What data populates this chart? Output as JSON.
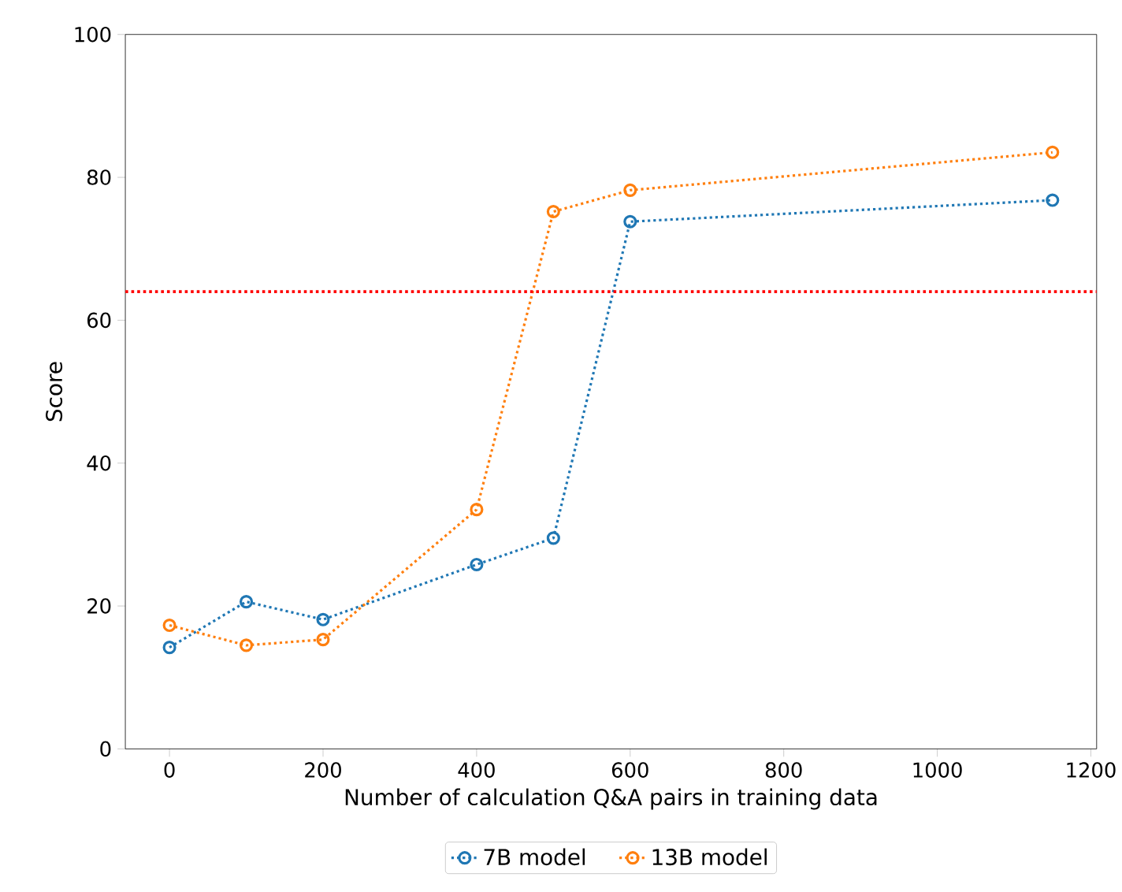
{
  "chart_data": {
    "type": "line",
    "xlabel": "Number of calculation Q&A pairs in training data",
    "ylabel": "Score",
    "x": [
      0,
      100,
      200,
      400,
      500,
      600,
      1150
    ],
    "series": [
      {
        "name": "7B model",
        "color": "#1f77b4",
        "values": [
          14.2,
          20.6,
          18.1,
          25.8,
          29.5,
          73.8,
          76.8
        ]
      },
      {
        "name": "13B model",
        "color": "#ff7f0e",
        "values": [
          17.3,
          14.5,
          15.3,
          33.5,
          75.2,
          78.2,
          83.5
        ]
      }
    ],
    "xlim": [
      -57.5,
      1207.5
    ],
    "ylim": [
      0,
      100
    ],
    "xticks": [
      0,
      200,
      400,
      600,
      800,
      1000,
      1200
    ],
    "yticks": [
      0,
      20,
      40,
      60,
      80,
      100
    ],
    "ref_lines": [
      {
        "axis": "y",
        "value": 64,
        "color": "#ff0000",
        "line_style": "dotted"
      }
    ],
    "legend": "bottom",
    "marker": "circle",
    "line_style": "dotted"
  }
}
